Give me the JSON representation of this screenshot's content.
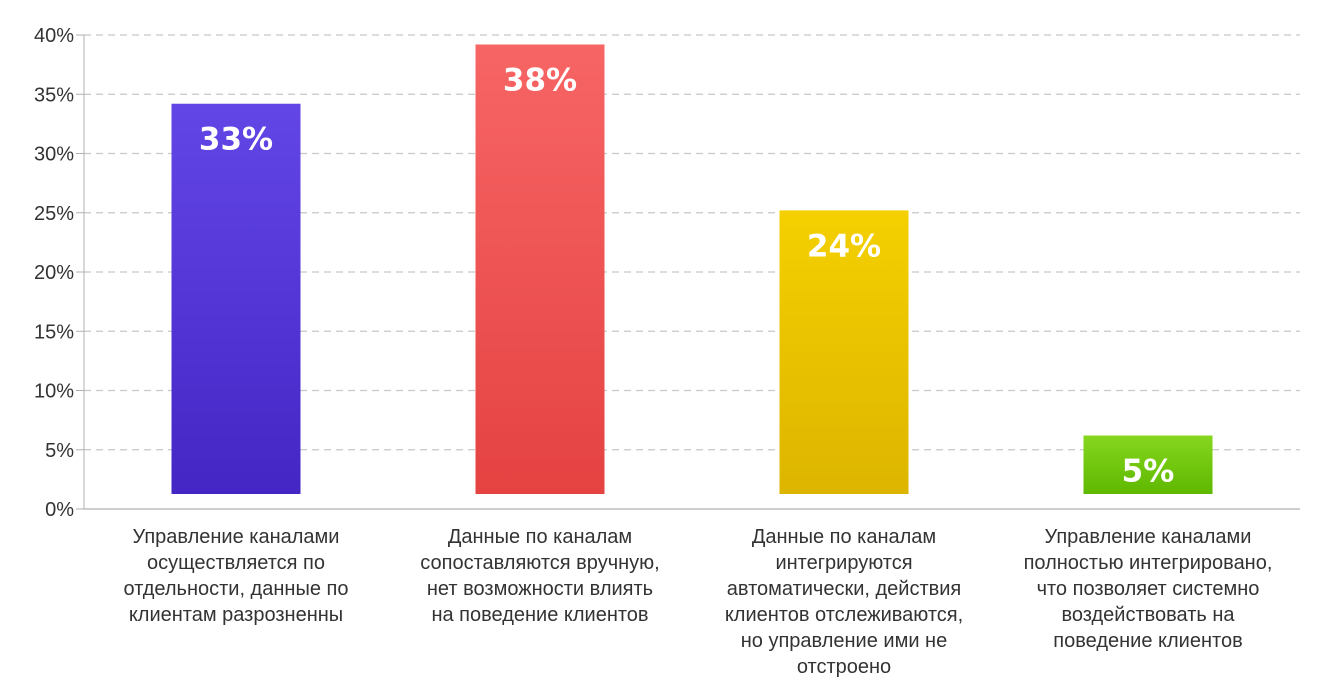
{
  "chart_data": {
    "type": "bar",
    "categories": [
      [
        "Управление каналами",
        "осуществляется по",
        "отдельности, данные по",
        "клиентам разрозненны"
      ],
      [
        "Данные по каналам",
        "сопоставляются вручную,",
        "нет возможности влиять",
        "на поведение клиентов"
      ],
      [
        "Данные по каналам",
        "интегрируются",
        "автоматически, действия",
        "клиентов отслеживаются,",
        "но управление ими не",
        "отстроено"
      ],
      [
        "Управление каналами",
        "полностью интегрировано,",
        "что позволяет системно",
        "воздействовать на",
        "поведение клиентов"
      ]
    ],
    "values": [
      33,
      38,
      24,
      5
    ],
    "data_labels": [
      "33%",
      "38%",
      "24%",
      "5%"
    ],
    "colors": [
      [
        "#6346e6",
        "#4326c4"
      ],
      [
        "#f76565",
        "#e54242"
      ],
      [
        "#f4d000",
        "#ddb500"
      ],
      [
        "#86d61e",
        "#5fb800"
      ]
    ],
    "ylim": [
      0,
      40
    ],
    "yticks": [
      0,
      5,
      10,
      15,
      20,
      25,
      30,
      35,
      40
    ],
    "ytick_labels": [
      "0%",
      "5%",
      "10%",
      "15%",
      "20%",
      "25%",
      "30%",
      "35%",
      "40%"
    ],
    "grid": true,
    "title": "",
    "xlabel": "",
    "ylabel": ""
  }
}
